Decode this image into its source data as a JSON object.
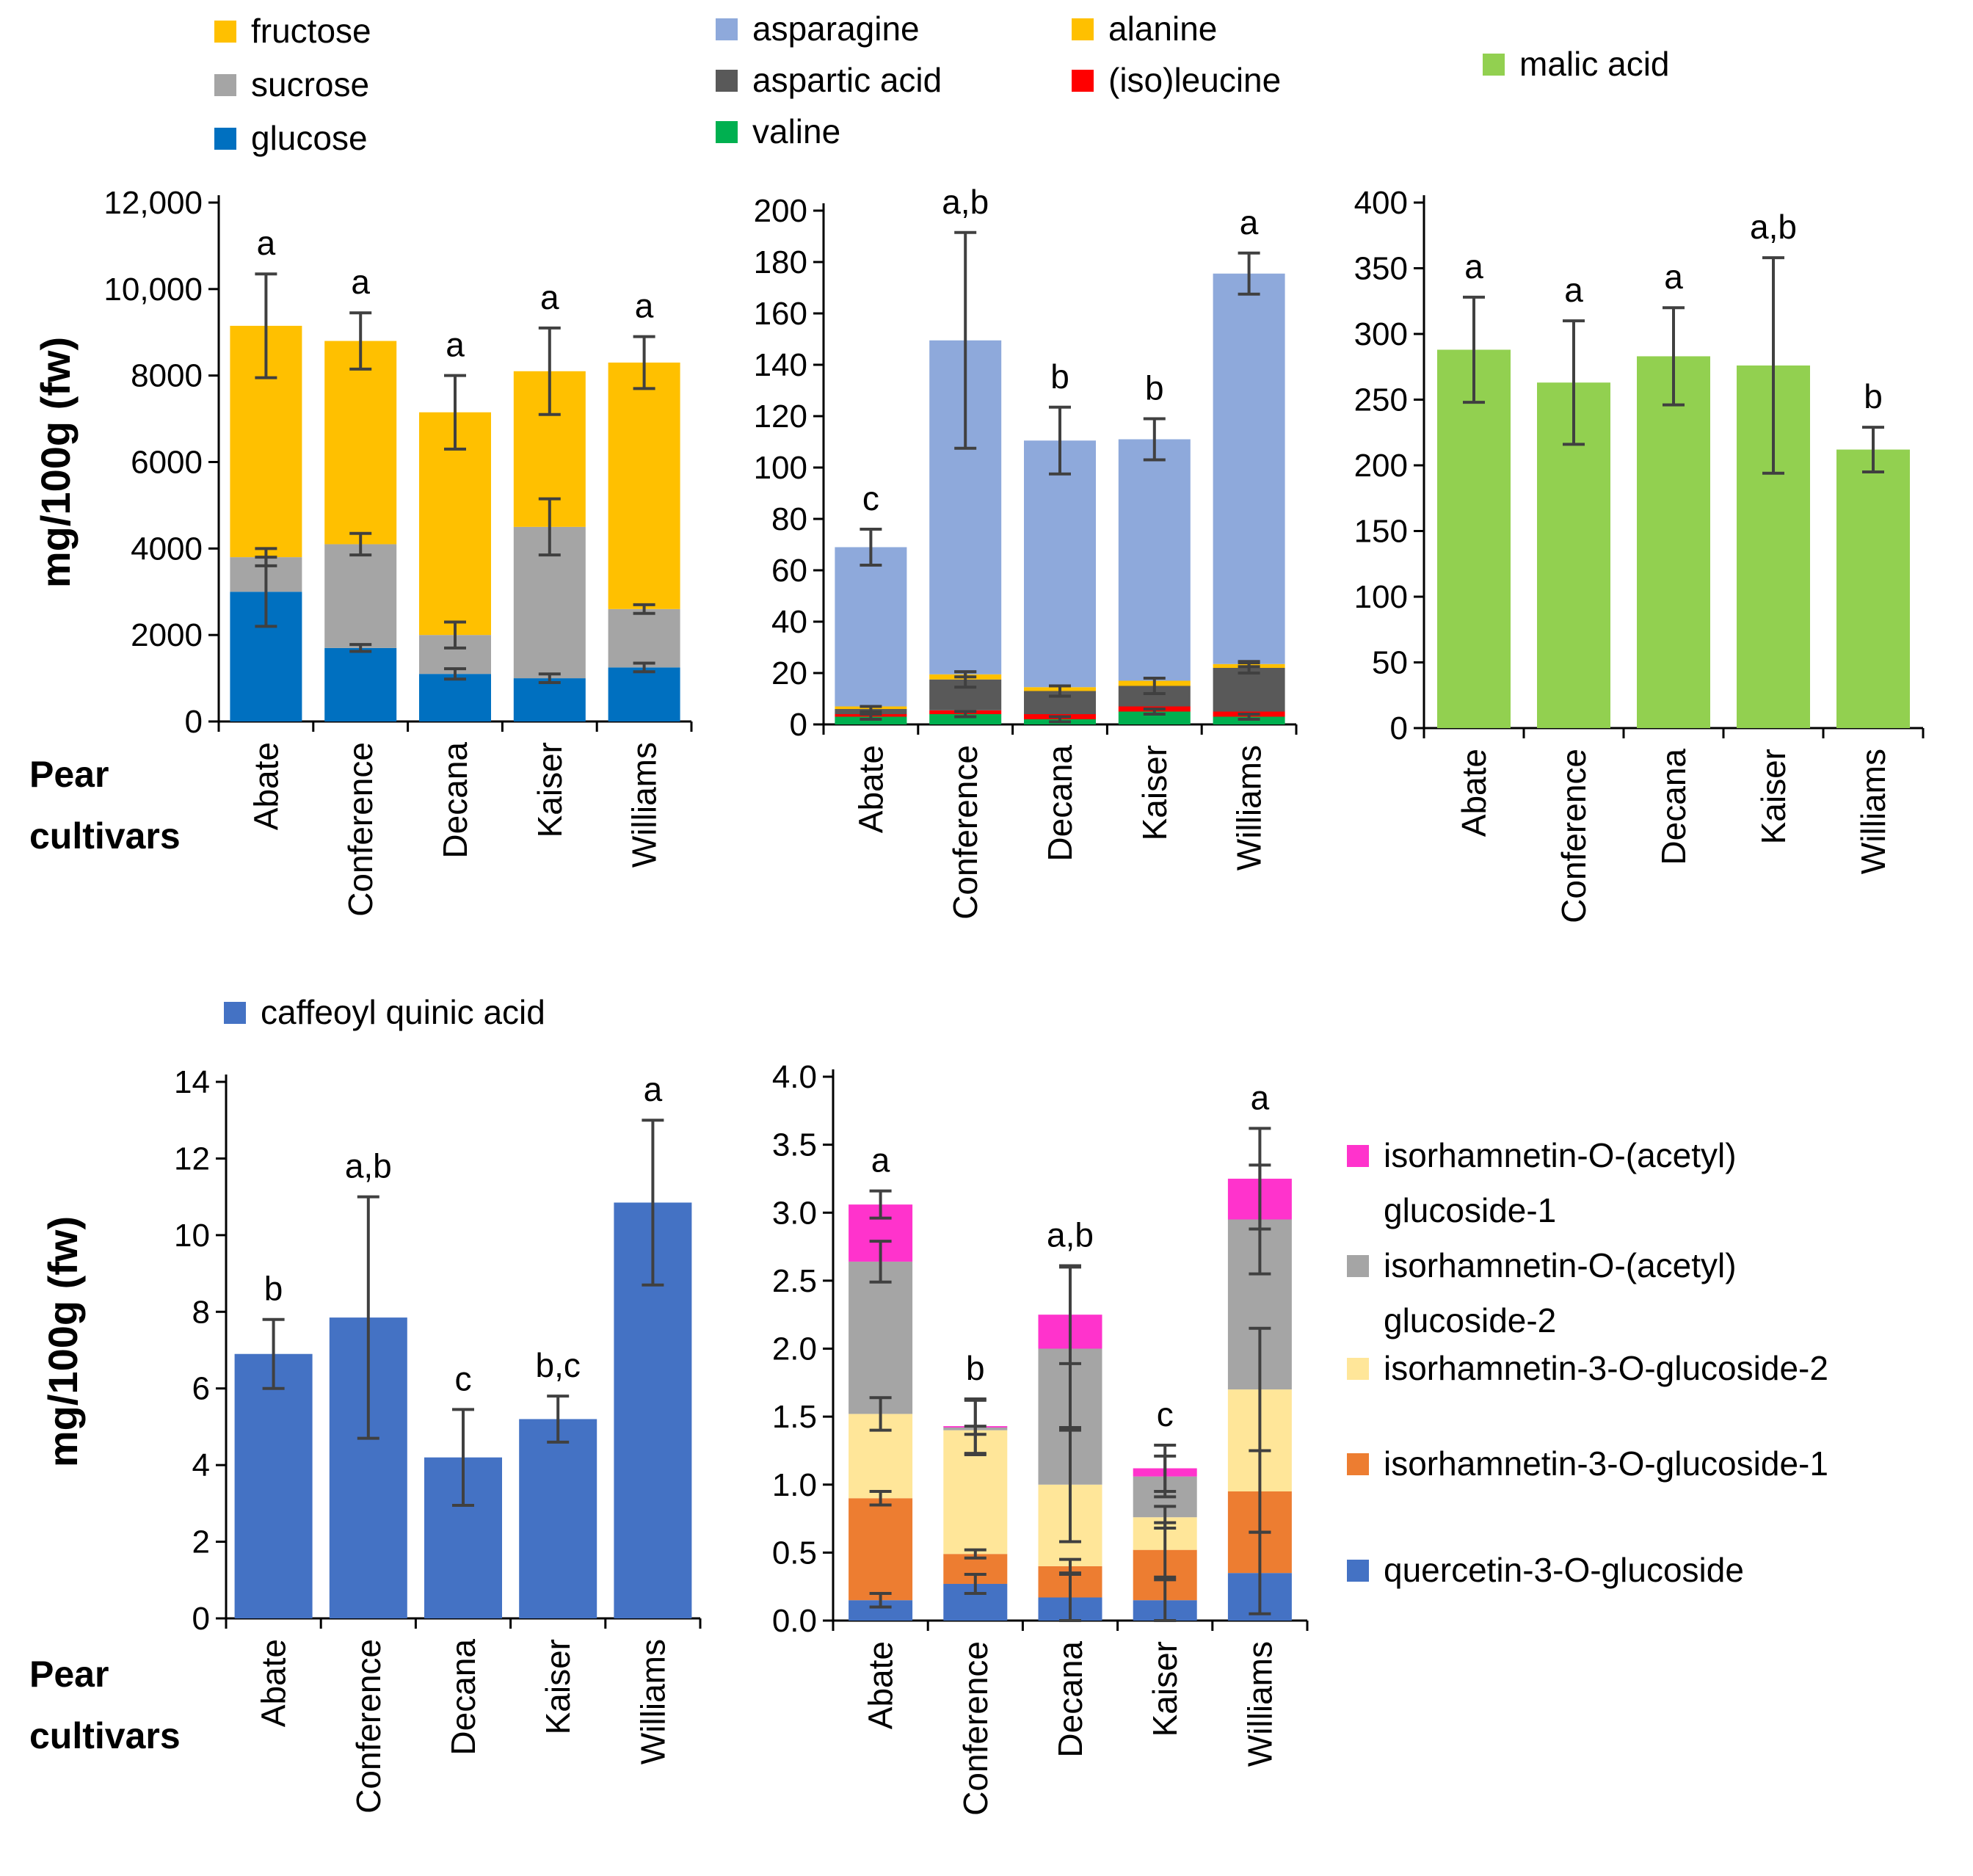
{
  "chart_data": [
    {
      "id": "sugars",
      "type": "bar",
      "stacked": true,
      "categories": [
        "Abate",
        "Conference",
        "Decana",
        "Kaiser",
        "Williams"
      ],
      "ylabel": "mg/100g (fw)",
      "xlabel": "Pear cultivars",
      "ylim": [
        0,
        12000
      ],
      "yticks": [
        0,
        2000,
        4000,
        6000,
        8000,
        10000,
        12000
      ],
      "ytick_labels": [
        "0",
        "2000",
        "4000",
        "6000",
        "8000",
        "10,000",
        "12,000"
      ],
      "series": [
        {
          "name": "glucose",
          "color": "#0070C0",
          "values": [
            3000,
            1700,
            1100,
            1000,
            1250
          ],
          "errors": [
            800,
            80,
            120,
            100,
            100
          ]
        },
        {
          "name": "sucrose",
          "color": "#A5A5A5",
          "values": [
            800,
            2400,
            900,
            3500,
            1350
          ],
          "errors": [
            200,
            250,
            300,
            650,
            100
          ]
        },
        {
          "name": "fructose",
          "color": "#FFC000",
          "values": [
            5350,
            4700,
            5150,
            3600,
            5700
          ],
          "errors": [
            1200,
            650,
            850,
            1000,
            600
          ]
        }
      ],
      "legend_order": [
        "fructose",
        "sucrose",
        "glucose"
      ],
      "letters": [
        "a",
        "a",
        "a",
        "a",
        "a"
      ]
    },
    {
      "id": "amino_acids",
      "type": "bar",
      "stacked": true,
      "categories": [
        "Abate",
        "Conference",
        "Decana",
        "Kaiser",
        "Williams"
      ],
      "ylim": [
        0,
        200
      ],
      "yticks": [
        0,
        20,
        40,
        60,
        80,
        100,
        120,
        140,
        160,
        180,
        200
      ],
      "ytick_labels": [
        "0",
        "20",
        "40",
        "60",
        "80",
        "100",
        "120",
        "140",
        "160",
        "180",
        "200"
      ],
      "series": [
        {
          "name": "valine",
          "color": "#00B050",
          "values": [
            3,
            4,
            2,
            5,
            3
          ],
          "errors": [
            1,
            1,
            1,
            1,
            1
          ]
        },
        {
          "name": "(iso)leucine",
          "color": "#FF0000",
          "values": [
            1,
            1.5,
            2,
            2,
            2
          ],
          "errors": [
            0,
            0,
            0,
            0,
            0
          ]
        },
        {
          "name": "aspartic acid",
          "color": "#595959",
          "values": [
            2,
            12,
            9,
            8,
            17
          ],
          "errors": [
            1,
            3,
            2,
            3,
            2
          ]
        },
        {
          "name": "alanine",
          "color": "#FFC000",
          "values": [
            1,
            2,
            1.5,
            2,
            1.5
          ],
          "errors": [
            0,
            1,
            0,
            0,
            1
          ]
        },
        {
          "name": "asparagine",
          "color": "#8EA9DB",
          "values": [
            62,
            130,
            96,
            94,
            152
          ],
          "errors": [
            7,
            42,
            13,
            8,
            8
          ]
        }
      ],
      "legend_order": [
        "asparagine",
        "alanine",
        "aspartic acid",
        "(iso)leucine",
        "valine"
      ],
      "letters": [
        "c",
        "a,b",
        "b",
        "b",
        "a"
      ]
    },
    {
      "id": "malic",
      "type": "bar",
      "stacked": false,
      "categories": [
        "Abate",
        "Conference",
        "Decana",
        "Kaiser",
        "Williams"
      ],
      "ylim": [
        0,
        400
      ],
      "yticks": [
        0,
        50,
        100,
        150,
        200,
        250,
        300,
        350,
        400
      ],
      "ytick_labels": [
        "0",
        "50",
        "100",
        "150",
        "200",
        "250",
        "300",
        "350",
        "400"
      ],
      "series": [
        {
          "name": "malic acid",
          "color": "#92D050",
          "values": [
            288,
            263,
            283,
            276,
            212
          ],
          "errors": [
            40,
            47,
            37,
            82,
            17
          ]
        }
      ],
      "legend_order": [
        "malic acid"
      ],
      "letters": [
        "a",
        "a",
        "a",
        "a,b",
        "b"
      ]
    },
    {
      "id": "caffeoyl",
      "type": "bar",
      "stacked": false,
      "categories": [
        "Abate",
        "Conference",
        "Decana",
        "Kaiser",
        "Williams"
      ],
      "ylabel": "mg/100g (fw)",
      "xlabel": "Pear cultivars",
      "ylim": [
        0,
        14
      ],
      "yticks": [
        0,
        2,
        4,
        6,
        8,
        10,
        12,
        14
      ],
      "ytick_labels": [
        "0",
        "2",
        "4",
        "6",
        "8",
        "10",
        "12",
        "14"
      ],
      "series": [
        {
          "name": "caffeoyl quinic acid",
          "color": "#4472C4",
          "values": [
            6.9,
            7.85,
            4.2,
            5.2,
            10.85
          ],
          "errors": [
            0.9,
            3.15,
            1.25,
            0.6,
            2.15
          ]
        }
      ],
      "legend_order": [
        "caffeoyl quinic acid"
      ],
      "letters": [
        "b",
        "a,b",
        "c",
        "b,c",
        "a"
      ]
    },
    {
      "id": "flavonols",
      "type": "bar",
      "stacked": true,
      "categories": [
        "Abate",
        "Conference",
        "Decana",
        "Kaiser",
        "Williams"
      ],
      "ylim": [
        0,
        4.0
      ],
      "yticks": [
        0,
        0.5,
        1.0,
        1.5,
        2.0,
        2.5,
        3.0,
        3.5,
        4.0
      ],
      "ytick_labels": [
        "0.0",
        "0.5",
        "1.0",
        "1.5",
        "2.0",
        "2.5",
        "3.0",
        "3.5",
        "4.0"
      ],
      "series": [
        {
          "name": "quercetin-3-O-glucoside",
          "color": "#4472C4",
          "values": [
            0.15,
            0.27,
            0.17,
            0.15,
            0.35
          ],
          "errors": [
            0.05,
            0.07,
            0.17,
            0.15,
            0.3
          ]
        },
        {
          "name": "isorhamnetin-3-O-glucoside-1",
          "color": "#ED7D31",
          "values": [
            0.75,
            0.22,
            0.23,
            0.37,
            0.6
          ],
          "errors": [
            0.05,
            0.03,
            0.05,
            0.2,
            0.3
          ]
        },
        {
          "name": "isorhamnetin-3-O-glucoside-2",
          "color": "#FFE699",
          "values": [
            0.62,
            0.91,
            0.6,
            0.24,
            0.75
          ],
          "errors": [
            0.12,
            0.03,
            0.42,
            0.08,
            0.45
          ]
        },
        {
          "name": "isorhamnetin-O-(acetyl) glucoside-2",
          "color": "#A5A5A5",
          "values": [
            1.12,
            0.02,
            1.0,
            0.3,
            1.25
          ],
          "errors": [
            0.15,
            0.2,
            0.6,
            0.15,
            0.4
          ]
        },
        {
          "name": "isorhamnetin-O-(acetyl) glucoside-1",
          "color": "#FF33CC",
          "values": [
            0.42,
            0.01,
            0.25,
            0.06,
            0.3
          ],
          "errors": [
            0.1,
            0.2,
            0.36,
            0.17,
            0.37
          ]
        }
      ],
      "legend_order": [
        "isorhamnetin-O-(acetyl) glucoside-1",
        "isorhamnetin-O-(acetyl) glucoside-2",
        "isorhamnetin-3-O-glucoside-2",
        "isorhamnetin-3-O-glucoside-1",
        "quercetin-3-O-glucoside"
      ],
      "letters": [
        "a",
        "b",
        "a,b",
        "c",
        "a"
      ]
    }
  ]
}
